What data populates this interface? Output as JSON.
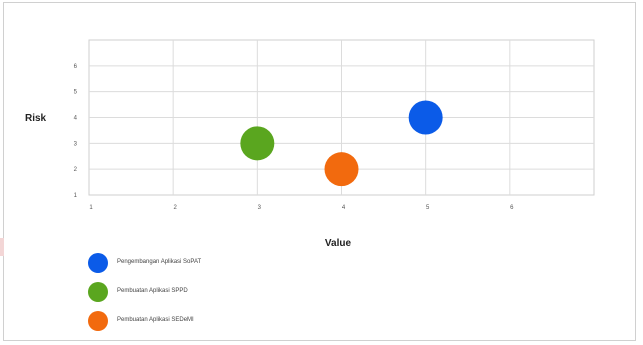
{
  "chart_data": {
    "type": "scatter",
    "xlabel": "Value",
    "ylabel": "Risk",
    "xlim": [
      1,
      7
    ],
    "ylim": [
      1,
      7
    ],
    "x_ticks": [
      "1",
      "2",
      "3",
      "4",
      "5",
      "6"
    ],
    "y_ticks": [
      "1",
      "2",
      "3",
      "4",
      "5",
      "6"
    ],
    "grid": true,
    "legend_position": "bottom-left",
    "series": [
      {
        "name": "Pengembangan Aplikasi SoPAT",
        "x": 5,
        "y": 4,
        "color": "#0b5be8"
      },
      {
        "name": "Pembuatan Aplikasi SPPD",
        "x": 3,
        "y": 3,
        "color": "#5aa61f"
      },
      {
        "name": "Pembuatan Aplikasi SEDeMI",
        "x": 4,
        "y": 2,
        "color": "#f26a0e"
      }
    ]
  }
}
